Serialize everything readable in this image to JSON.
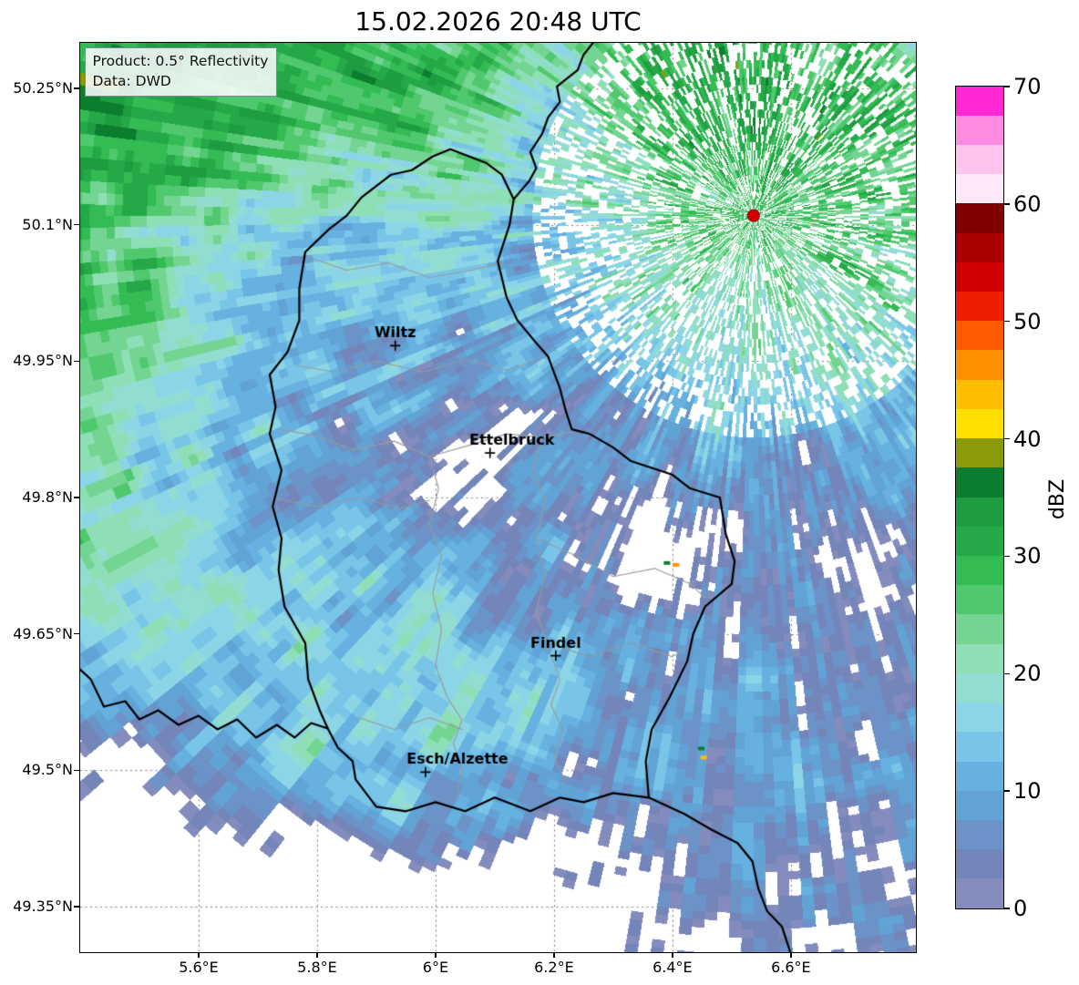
{
  "title": "15.02.2026 20:48 UTC",
  "info_box": {
    "product": "Product: 0.5° Reflectivity",
    "source": "Data: DWD"
  },
  "axes": {
    "lat_range": [
      49.3,
      50.3
    ],
    "lon_range": [
      5.4,
      6.811
    ],
    "lat_ticks": [
      {
        "label": "50.25°N",
        "lat": 50.25
      },
      {
        "label": "50.1°N",
        "lat": 50.1
      },
      {
        "label": "49.95°N",
        "lat": 49.95
      },
      {
        "label": "49.8°N",
        "lat": 49.8
      },
      {
        "label": "49.65°N",
        "lat": 49.65
      },
      {
        "label": "49.5°N",
        "lat": 49.5
      },
      {
        "label": "49.35°N",
        "lat": 49.35
      }
    ],
    "lon_ticks": [
      {
        "label": "5.6°E",
        "lon": 5.6
      },
      {
        "label": "5.8°E",
        "lon": 5.8
      },
      {
        "label": "6°E",
        "lon": 6.0
      },
      {
        "label": "6.2°E",
        "lon": 6.2
      },
      {
        "label": "6.4°E",
        "lon": 6.4
      },
      {
        "label": "6.6°E",
        "lon": 6.6
      }
    ]
  },
  "cities": [
    {
      "name": "Wiltz",
      "lat": 49.967,
      "lon": 5.932,
      "label_dx": 0
    },
    {
      "name": "Ettelbruck",
      "lat": 49.849,
      "lon": 6.092,
      "label_dx": 24
    },
    {
      "name": "Findel",
      "lat": 49.626,
      "lon": 6.203,
      "label_dx": 0
    },
    {
      "name": "Esch/Alzette",
      "lat": 49.498,
      "lon": 5.983,
      "label_dx": 35
    }
  ],
  "radar_site": {
    "lat": 50.11,
    "lon": 6.537,
    "color": "#d40000"
  },
  "colorbar": {
    "label": "dBZ",
    "ticks": [
      0,
      10,
      20,
      30,
      40,
      50,
      60,
      70
    ],
    "vmin": 0,
    "vmax": 70,
    "step": 2.5,
    "colors": [
      "#838cbc",
      "#7485b9",
      "#6b93c8",
      "#62a3d6",
      "#66b1e0",
      "#79c5e8",
      "#8bd5e6",
      "#92ddd2",
      "#8edfb6",
      "#74d592",
      "#50c96e",
      "#33bb54",
      "#25a847",
      "#1d9c40",
      "#0c7d2e",
      "#8a9b07",
      "#ffdf00",
      "#ffbf00",
      "#ff9000",
      "#ff5a00",
      "#f01e00",
      "#d00000",
      "#a80000",
      "#800000",
      "#ffe8f8",
      "#ffc4ee",
      "#ff8ce2",
      "#ff28d2"
    ]
  },
  "chart_data": {
    "type": "heatmap",
    "title": "15.02.2026 20:48 UTC",
    "subtitle": "0.5° radar reflectivity over Luxembourg region",
    "colorbar_label": "dBZ",
    "colorbar_ticks": [
      0,
      10,
      20,
      30,
      40,
      50,
      60,
      70
    ],
    "value_range": [
      0,
      70
    ],
    "x_ticks": [
      "5.6°E",
      "5.8°E",
      "6°E",
      "6.2°E",
      "6.4°E",
      "6.6°E"
    ],
    "y_ticks": [
      "49.35°N",
      "49.5°N",
      "49.65°N",
      "49.8°N",
      "49.95°N",
      "50.1°N",
      "50.25°N"
    ],
    "legend_position": "right",
    "grid": "dotted",
    "annotations": [
      "Wiltz",
      "Ettelbruck",
      "Findel",
      "Esch/Alzette"
    ],
    "marker": "radar site (red dot) near 50.11°N 6.54°E"
  },
  "map": {
    "border_color": "#000000",
    "internal_border_color": "#9a9a9a",
    "grid_color": "#7d7d7d",
    "country_borders": [
      [
        [
          50.183,
          6.025
        ],
        [
          50.168,
          6.085
        ],
        [
          50.155,
          6.112
        ],
        [
          50.128,
          6.132
        ],
        [
          50.1,
          6.125
        ],
        [
          50.06,
          6.105
        ],
        [
          50.02,
          6.12
        ],
        [
          49.995,
          6.138
        ],
        [
          49.97,
          6.17
        ],
        [
          49.955,
          6.19
        ],
        [
          49.92,
          6.21
        ],
        [
          49.895,
          6.22
        ],
        [
          49.875,
          6.23
        ],
        [
          49.87,
          6.26
        ],
        [
          49.855,
          6.3
        ],
        [
          49.84,
          6.33
        ],
        [
          49.825,
          6.4
        ],
        [
          49.81,
          6.43
        ],
        [
          49.8,
          6.48
        ],
        [
          49.76,
          6.49
        ],
        [
          49.73,
          6.505
        ],
        [
          49.705,
          6.5
        ],
        [
          49.68,
          6.455
        ],
        [
          49.65,
          6.435
        ],
        [
          49.62,
          6.425
        ],
        [
          49.58,
          6.395
        ],
        [
          49.545,
          6.365
        ],
        [
          49.51,
          6.355
        ],
        [
          49.47,
          6.36
        ],
        [
          49.475,
          6.3
        ],
        [
          49.465,
          6.25
        ],
        [
          49.47,
          6.21
        ],
        [
          49.455,
          6.16
        ],
        [
          49.47,
          6.1
        ],
        [
          49.455,
          6.05
        ],
        [
          49.465,
          6.0
        ],
        [
          49.455,
          5.95
        ],
        [
          49.46,
          5.9
        ],
        [
          49.49,
          5.865
        ],
        [
          49.51,
          5.86
        ],
        [
          49.525,
          5.835
        ],
        [
          49.546,
          5.818
        ],
        [
          49.565,
          5.805
        ],
        [
          49.6,
          5.785
        ],
        [
          49.64,
          5.78
        ],
        [
          49.68,
          5.745
        ],
        [
          49.72,
          5.735
        ],
        [
          49.755,
          5.74
        ],
        [
          49.79,
          5.725
        ],
        [
          49.83,
          5.74
        ],
        [
          49.87,
          5.72
        ],
        [
          49.9,
          5.73
        ],
        [
          49.935,
          5.72
        ],
        [
          49.96,
          5.75
        ],
        [
          49.995,
          5.77
        ],
        [
          50.03,
          5.77
        ],
        [
          50.07,
          5.78
        ],
        [
          50.095,
          5.82
        ],
        [
          50.11,
          5.85
        ],
        [
          50.13,
          5.875
        ],
        [
          50.155,
          5.925
        ],
        [
          50.16,
          5.96
        ],
        [
          50.175,
          5.995
        ],
        [
          50.183,
          6.025
        ]
      ],
      [
        [
          50.128,
          6.132
        ],
        [
          50.148,
          6.158
        ],
        [
          50.162,
          6.17
        ],
        [
          50.18,
          6.16
        ],
        [
          50.2,
          6.18
        ],
        [
          50.218,
          6.19
        ],
        [
          50.235,
          6.21
        ],
        [
          50.252,
          6.205
        ],
        [
          50.27,
          6.24
        ],
        [
          50.287,
          6.25
        ],
        [
          50.305,
          6.272
        ]
      ],
      [
        [
          49.47,
          6.36
        ],
        [
          49.452,
          6.42
        ],
        [
          49.435,
          6.465
        ],
        [
          49.42,
          6.51
        ],
        [
          49.4,
          6.535
        ],
        [
          49.37,
          6.545
        ],
        [
          49.345,
          6.56
        ],
        [
          49.328,
          6.585
        ],
        [
          49.298,
          6.6
        ]
      ],
      [
        [
          49.546,
          5.818
        ],
        [
          49.552,
          5.79
        ],
        [
          49.536,
          5.762
        ],
        [
          49.55,
          5.732
        ],
        [
          49.536,
          5.697
        ],
        [
          49.556,
          5.665
        ],
        [
          49.545,
          5.632
        ],
        [
          49.56,
          5.6
        ],
        [
          49.55,
          5.566
        ],
        [
          49.566,
          5.532
        ],
        [
          49.556,
          5.5
        ],
        [
          49.576,
          5.476
        ],
        [
          49.57,
          5.44
        ],
        [
          49.6,
          5.418
        ],
        [
          49.612,
          5.398
        ]
      ]
    ],
    "internal_borders": [
      [
        [
          49.875,
          5.735
        ],
        [
          49.868,
          5.8
        ],
        [
          49.852,
          5.86
        ],
        [
          49.862,
          5.93
        ],
        [
          49.845,
          5.99
        ],
        [
          49.858,
          6.06
        ],
        [
          49.87,
          6.12
        ],
        [
          49.866,
          6.18
        ],
        [
          49.872,
          6.23
        ]
      ],
      [
        [
          50.065,
          5.782
        ],
        [
          50.05,
          5.85
        ],
        [
          50.058,
          5.92
        ],
        [
          50.042,
          5.99
        ],
        [
          50.05,
          6.06
        ],
        [
          50.058,
          6.115
        ]
      ],
      [
        [
          49.845,
          5.99
        ],
        [
          49.81,
          6.005
        ],
        [
          49.77,
          5.99
        ],
        [
          49.735,
          6.01
        ],
        [
          49.695,
          5.995
        ],
        [
          49.655,
          6.01
        ],
        [
          49.615,
          6.0
        ],
        [
          49.58,
          6.02
        ],
        [
          49.555,
          6.045
        ],
        [
          49.53,
          6.03
        ],
        [
          49.5,
          6.045
        ],
        [
          49.468,
          6.035
        ]
      ],
      [
        [
          49.866,
          6.18
        ],
        [
          49.83,
          6.165
        ],
        [
          49.795,
          6.185
        ],
        [
          49.755,
          6.17
        ],
        [
          49.715,
          6.185
        ],
        [
          49.675,
          6.17
        ],
        [
          49.635,
          6.19
        ],
        [
          49.6,
          6.21
        ],
        [
          49.572,
          6.195
        ],
        [
          49.545,
          6.215
        ],
        [
          49.515,
          6.2
        ],
        [
          49.487,
          6.22
        ]
      ],
      [
        [
          49.558,
          5.87
        ],
        [
          49.545,
          5.93
        ],
        [
          49.558,
          5.99
        ],
        [
          49.545,
          6.045
        ]
      ],
      [
        [
          49.755,
          6.17
        ],
        [
          49.735,
          6.24
        ],
        [
          49.713,
          6.3
        ],
        [
          49.722,
          6.37
        ],
        [
          49.705,
          6.43
        ],
        [
          49.69,
          6.455
        ]
      ],
      [
        [
          49.8,
          5.725
        ],
        [
          49.79,
          5.8
        ],
        [
          49.8,
          5.87
        ],
        [
          49.788,
          5.94
        ],
        [
          49.797,
          5.99
        ]
      ],
      [
        [
          49.64,
          6.19
        ],
        [
          49.625,
          6.26
        ],
        [
          49.64,
          6.33
        ],
        [
          49.625,
          6.4
        ],
        [
          49.635,
          6.425
        ]
      ],
      [
        [
          49.955,
          6.19
        ],
        [
          49.94,
          6.12
        ],
        [
          49.952,
          6.05
        ],
        [
          49.938,
          5.98
        ],
        [
          49.95,
          5.9
        ],
        [
          49.938,
          5.83
        ],
        [
          49.945,
          5.765
        ]
      ]
    ],
    "specks": [
      {
        "lat": 49.726,
        "lon": 6.405,
        "color": "#ff9000"
      },
      {
        "lat": 49.728,
        "lon": 6.39,
        "color": "#0c7d2e"
      },
      {
        "lat": 49.524,
        "lon": 6.448,
        "color": "#0c7d2e"
      },
      {
        "lat": 49.514,
        "lon": 6.452,
        "color": "#ffbf00"
      }
    ]
  },
  "field": {
    "base": 7.5,
    "blobs": [
      [
        0.04,
        0.05,
        19,
        0.3,
        0.2
      ],
      [
        0.4,
        -0.08,
        13,
        0.22,
        0.16
      ],
      [
        0.9,
        0.08,
        18,
        0.28,
        0.22
      ],
      [
        -0.06,
        0.45,
        14,
        0.15,
        0.25
      ],
      [
        0.27,
        0.73,
        11,
        0.2,
        0.12
      ],
      [
        0.44,
        0.82,
        7,
        0.1,
        0.08
      ],
      [
        0.3,
        0.27,
        -4,
        0.25,
        0.18
      ],
      [
        0.05,
        0.95,
        -20,
        0.22,
        0.13
      ],
      [
        -0.02,
        0.78,
        -9,
        0.1,
        0.09
      ],
      [
        0.5,
        1.0,
        -16,
        0.15,
        0.12
      ],
      [
        0.46,
        0.47,
        -10,
        0.05,
        0.045
      ],
      [
        0.7,
        0.56,
        -9,
        0.075,
        0.06
      ],
      [
        0.97,
        0.62,
        -8,
        0.08,
        0.09
      ],
      [
        0.58,
        0.13,
        -8,
        0.055,
        0.1
      ],
      [
        0.85,
        0.47,
        -6,
        0.05,
        0.05
      ],
      [
        0.63,
        0.4,
        -5,
        0.06,
        0.05
      ],
      [
        0.95,
        0.95,
        -4,
        0.12,
        0.1
      ]
    ]
  }
}
